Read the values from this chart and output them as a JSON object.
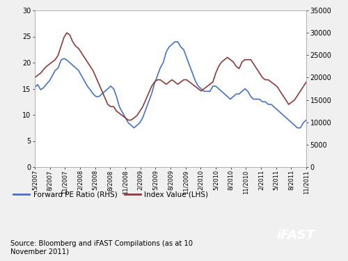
{
  "xlabel_ticks": [
    "5/2007",
    "8/2007",
    "11/2007",
    "2/2008",
    "5/2008",
    "8/2008",
    "11/2008",
    "2/2009",
    "5/2009",
    "8/2009",
    "11/2009",
    "2/2010",
    "5/2010",
    "8/2010",
    "11/2010",
    "2/2011",
    "5/2011",
    "8/2011",
    "11/2011"
  ],
  "ylim_pe": [
    0,
    30
  ],
  "ylim_index": [
    0,
    35000
  ],
  "yticks_pe": [
    0,
    5,
    10,
    15,
    20,
    25,
    30
  ],
  "yticks_index": [
    0,
    5000,
    10000,
    15000,
    20000,
    25000,
    30000,
    35000
  ],
  "pe_color": "#4472C4",
  "index_color": "#8B3A3A",
  "background_color": "#F0F0F0",
  "plot_bg_color": "#FFFFFF",
  "legend_pe": "Forward PE Ratio (RHS)",
  "legend_index": "Index Value (LHS)",
  "source_text": "Source: Bloomberg and iFAST Compilations (as at 10\nNovember 2011)",
  "ifast_text": "iFAST",
  "ifast_bg": "#2B2B2B",
  "ifast_text_color": "#FFFFFF",
  "pe_data": [
    15.3,
    15.8,
    14.8,
    15.2,
    15.9,
    16.5,
    17.5,
    18.5,
    19.0,
    20.5,
    20.8,
    20.5,
    20.0,
    19.5,
    19.0,
    18.5,
    17.5,
    16.5,
    15.5,
    14.8,
    14.0,
    13.5,
    13.5,
    14.0,
    14.5,
    15.0,
    15.5,
    15.0,
    13.5,
    11.5,
    10.5,
    9.5,
    8.5,
    8.0,
    7.5,
    8.0,
    8.5,
    9.5,
    11.0,
    12.5,
    14.0,
    16.0,
    17.5,
    19.0,
    20.0,
    22.0,
    23.0,
    23.5,
    24.0,
    24.0,
    23.0,
    22.5,
    21.0,
    19.5,
    18.0,
    16.5,
    15.5,
    15.0,
    14.5,
    14.5,
    14.5,
    15.5,
    15.5,
    15.0,
    14.5,
    14.0,
    13.5,
    13.0,
    13.5,
    14.0,
    14.0,
    14.5,
    15.0,
    14.5,
    13.5,
    13.0,
    13.0,
    13.0,
    12.5,
    12.5,
    12.0,
    12.0,
    11.5,
    11.0,
    10.5,
    10.0,
    9.5,
    9.0,
    8.5,
    8.0,
    7.5,
    7.5,
    8.5,
    9.0
  ],
  "index_data": [
    20000,
    20500,
    21000,
    21800,
    22500,
    23000,
    23500,
    24000,
    25000,
    27000,
    29000,
    30000,
    29500,
    28000,
    27000,
    26500,
    25500,
    24500,
    23500,
    22500,
    21500,
    20000,
    18500,
    17000,
    15500,
    14000,
    13500,
    13500,
    12500,
    12000,
    11500,
    11000,
    10500,
    10500,
    11000,
    11500,
    12500,
    13500,
    15000,
    16500,
    18000,
    19000,
    19500,
    19500,
    19000,
    18500,
    19000,
    19500,
    19000,
    18500,
    19000,
    19500,
    19500,
    19000,
    18500,
    18000,
    17500,
    17000,
    17500,
    18000,
    18500,
    19000,
    21000,
    22500,
    23500,
    24000,
    24500,
    24000,
    23500,
    22500,
    22000,
    23500,
    24000,
    24000,
    24000,
    23000,
    22000,
    21000,
    20000,
    19500,
    19500,
    19000,
    18500,
    18000,
    17000,
    16000,
    15000,
    14000,
    14500,
    15000,
    16000,
    17000,
    18000,
    19000
  ]
}
